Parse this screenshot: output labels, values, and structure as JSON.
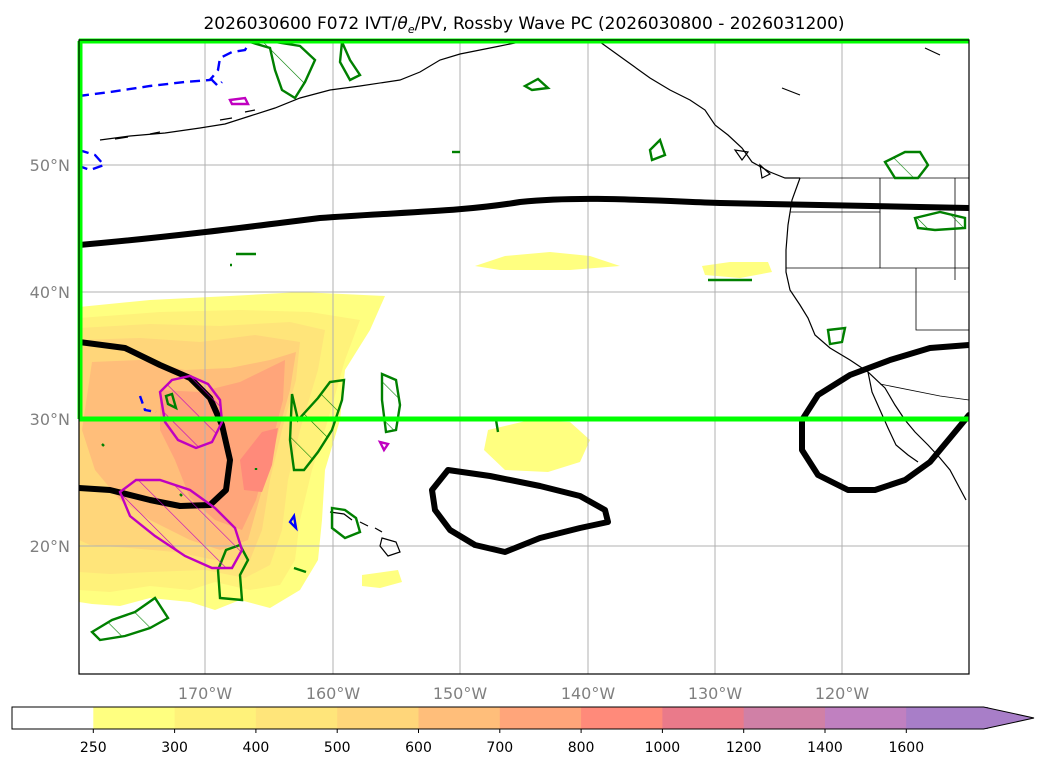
{
  "title_parts": {
    "prefix": "2026030600 F072 IVT/",
    "theta": "θ",
    "theta_sub": "e",
    "suffix": "/PV, Rossby Wave PC (2026030800 - 2026031200)"
  },
  "map": {
    "lon_labels": [
      "170°W",
      "160°W",
      "150°W",
      "140°W",
      "130°W",
      "120°W"
    ],
    "lat_labels": [
      "50°N",
      "40°N",
      "30°N",
      "20°N"
    ],
    "box_color": "#00ff00",
    "contour_black": "#000000",
    "contour_green": "#008000",
    "contour_magenta": "#c000c0",
    "contour_blue": "#0000ff"
  },
  "colorbar": {
    "levels": [
      "250",
      "300",
      "400",
      "500",
      "600",
      "700",
      "800",
      "1000",
      "1200",
      "1400",
      "1600"
    ],
    "colors": [
      "#ffffff",
      "#ffff80",
      "#fff27a",
      "#ffe57a",
      "#ffd67a",
      "#ffbe7a",
      "#ffa57a",
      "#ff8a7a",
      "#ea7a8a",
      "#d080a6",
      "#c080c0",
      "#a87ec8"
    ]
  }
}
